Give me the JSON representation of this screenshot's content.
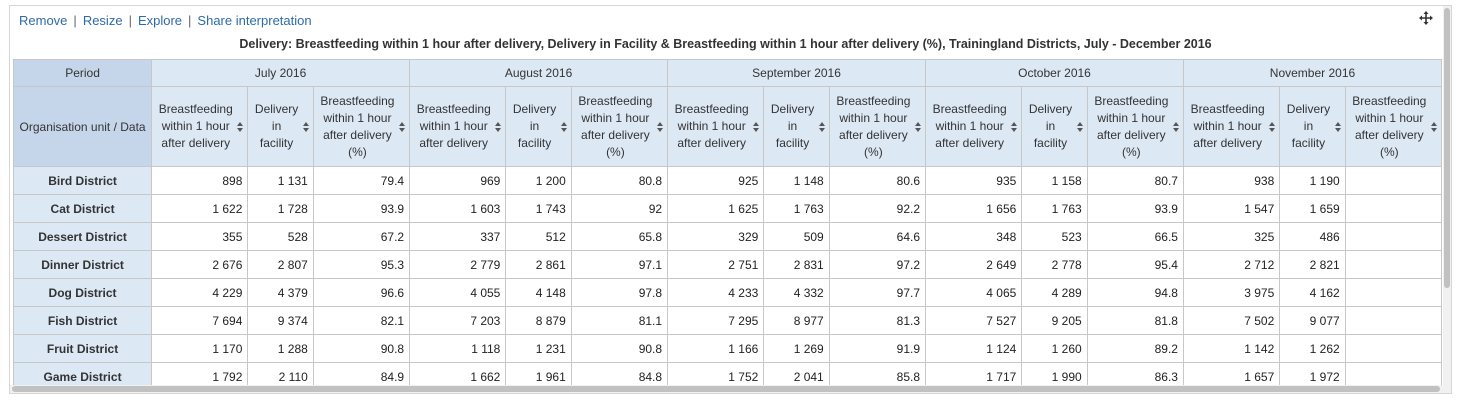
{
  "actions": {
    "remove": "Remove",
    "resize": "Resize",
    "explore": "Explore",
    "share": "Share interpretation",
    "separator": "|"
  },
  "move_icon": "move-arrows-icon",
  "title": "Delivery: Breastfeeding within 1 hour after delivery, Delivery in Facility & Breastfeeding within 1 hour after delivery (%), Trainingland Districts, July - December 2016",
  "table": {
    "corner_top": "Period",
    "corner_bottom": "Organisation unit / Data",
    "periods": [
      "July 2016",
      "August 2016",
      "September 2016",
      "October 2016",
      "November 2016"
    ],
    "data_elements": [
      [
        "Breastfeeding",
        "within 1 hour",
        "after delivery"
      ],
      [
        "Delivery",
        "in",
        "facility"
      ],
      [
        "Breastfeeding",
        "within 1 hour",
        "after delivery",
        "(%)"
      ]
    ],
    "rows": [
      {
        "org": "Bird District",
        "values": [
          "898",
          "1 131",
          "79.4",
          "969",
          "1 200",
          "80.8",
          "925",
          "1 148",
          "80.6",
          "935",
          "1 158",
          "80.7",
          "938",
          "1 190",
          ""
        ]
      },
      {
        "org": "Cat District",
        "values": [
          "1 622",
          "1 728",
          "93.9",
          "1 603",
          "1 743",
          "92",
          "1 625",
          "1 763",
          "92.2",
          "1 656",
          "1 763",
          "93.9",
          "1 547",
          "1 659",
          ""
        ]
      },
      {
        "org": "Dessert District",
        "values": [
          "355",
          "528",
          "67.2",
          "337",
          "512",
          "65.8",
          "329",
          "509",
          "64.6",
          "348",
          "523",
          "66.5",
          "325",
          "486",
          ""
        ]
      },
      {
        "org": "Dinner District",
        "values": [
          "2 676",
          "2 807",
          "95.3",
          "2 779",
          "2 861",
          "97.1",
          "2 751",
          "2 831",
          "97.2",
          "2 649",
          "2 778",
          "95.4",
          "2 712",
          "2 821",
          ""
        ]
      },
      {
        "org": "Dog District",
        "values": [
          "4 229",
          "4 379",
          "96.6",
          "4 055",
          "4 148",
          "97.8",
          "4 233",
          "4 332",
          "97.7",
          "4 065",
          "4 289",
          "94.8",
          "3 975",
          "4 162",
          ""
        ]
      },
      {
        "org": "Fish District",
        "values": [
          "7 694",
          "9 374",
          "82.1",
          "7 203",
          "8 879",
          "81.1",
          "7 295",
          "8 977",
          "81.3",
          "7 527",
          "9 205",
          "81.8",
          "7 502",
          "9 077",
          ""
        ]
      },
      {
        "org": "Fruit District",
        "values": [
          "1 170",
          "1 288",
          "90.8",
          "1 118",
          "1 231",
          "90.8",
          "1 166",
          "1 269",
          "91.9",
          "1 124",
          "1 260",
          "89.2",
          "1 142",
          "1 262",
          ""
        ]
      },
      {
        "org": "Game District",
        "values": [
          "1 792",
          "2 110",
          "84.9",
          "1 662",
          "1 961",
          "84.8",
          "1 752",
          "2 041",
          "85.8",
          "1 717",
          "1 990",
          "86.3",
          "1 657",
          "1 972",
          ""
        ]
      }
    ]
  },
  "colors": {
    "link": "#2d6ba8",
    "header_bg": "#dde8f5",
    "corner_bg": "#c6d6ea",
    "border": "#c7c7c7"
  }
}
